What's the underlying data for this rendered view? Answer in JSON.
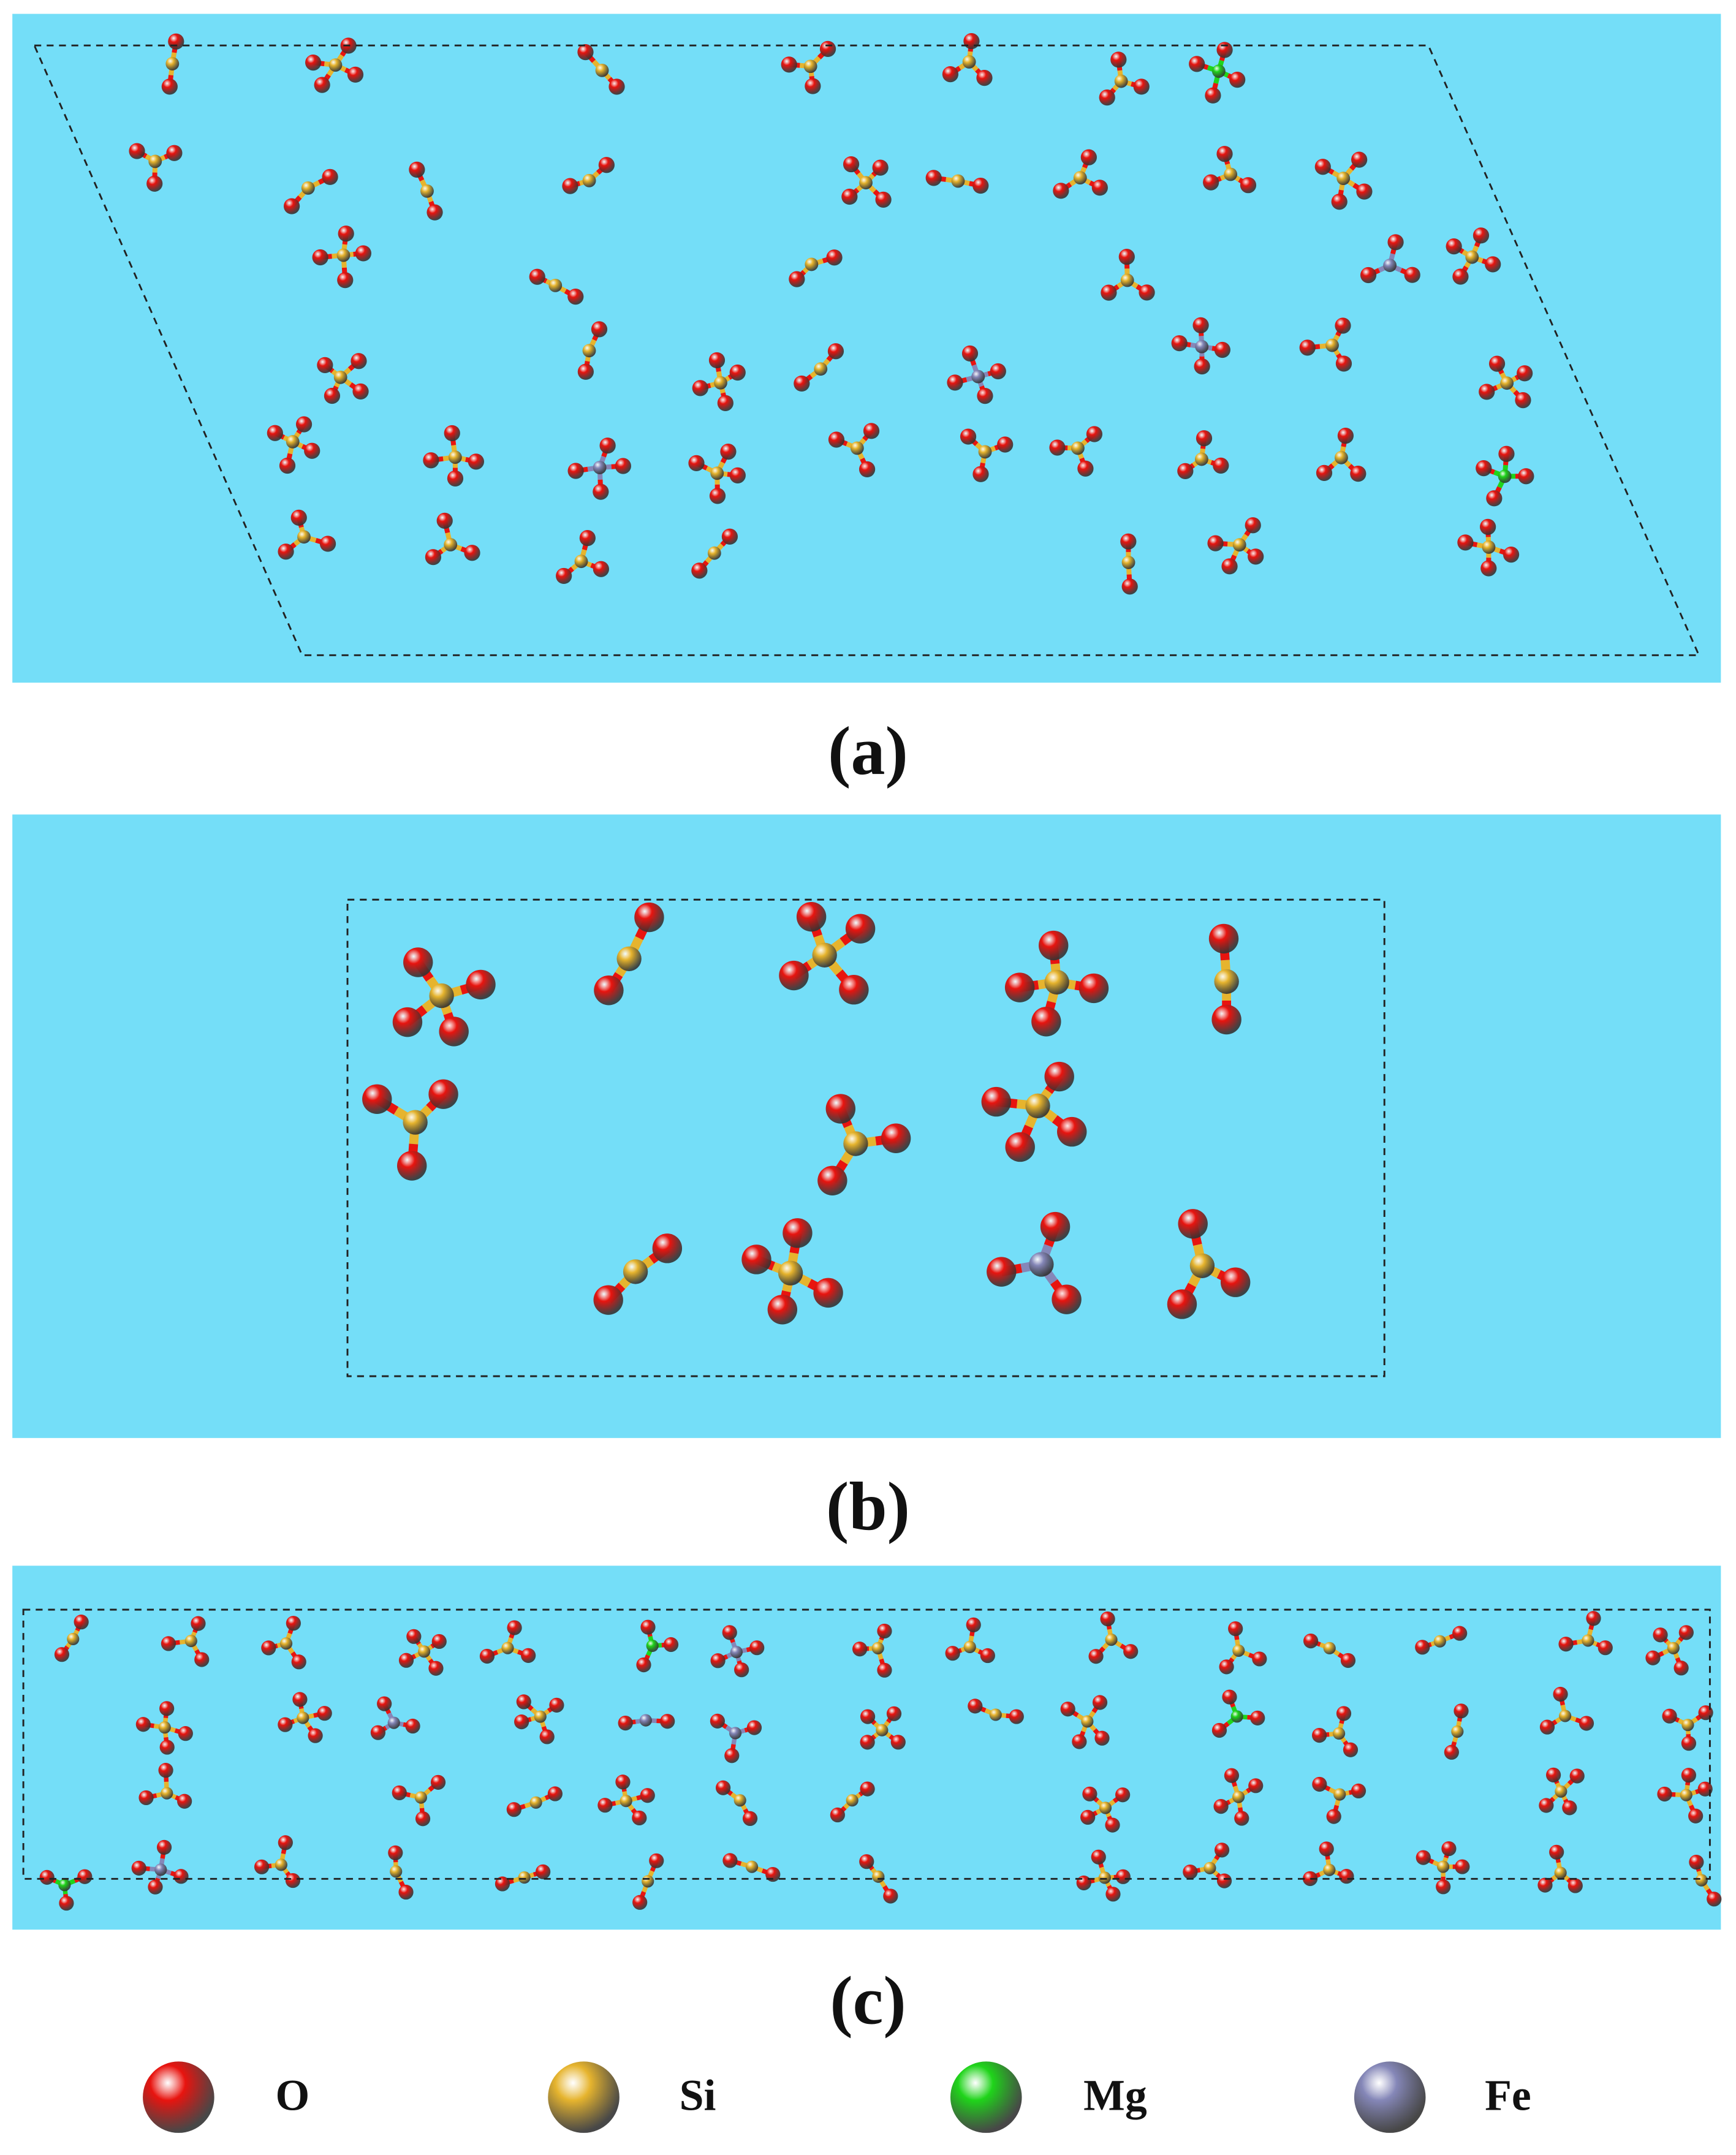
{
  "panels": [
    {
      "label": "(a)"
    },
    {
      "label": "(b)"
    },
    {
      "label": "(c)"
    }
  ],
  "legend": [
    {
      "name": "O",
      "color": "#e8140f"
    },
    {
      "name": "Si",
      "color": "#e6b42e"
    },
    {
      "name": "Mg",
      "color": "#1fd41a"
    },
    {
      "name": "Fe",
      "color": "#8587b8"
    }
  ]
}
